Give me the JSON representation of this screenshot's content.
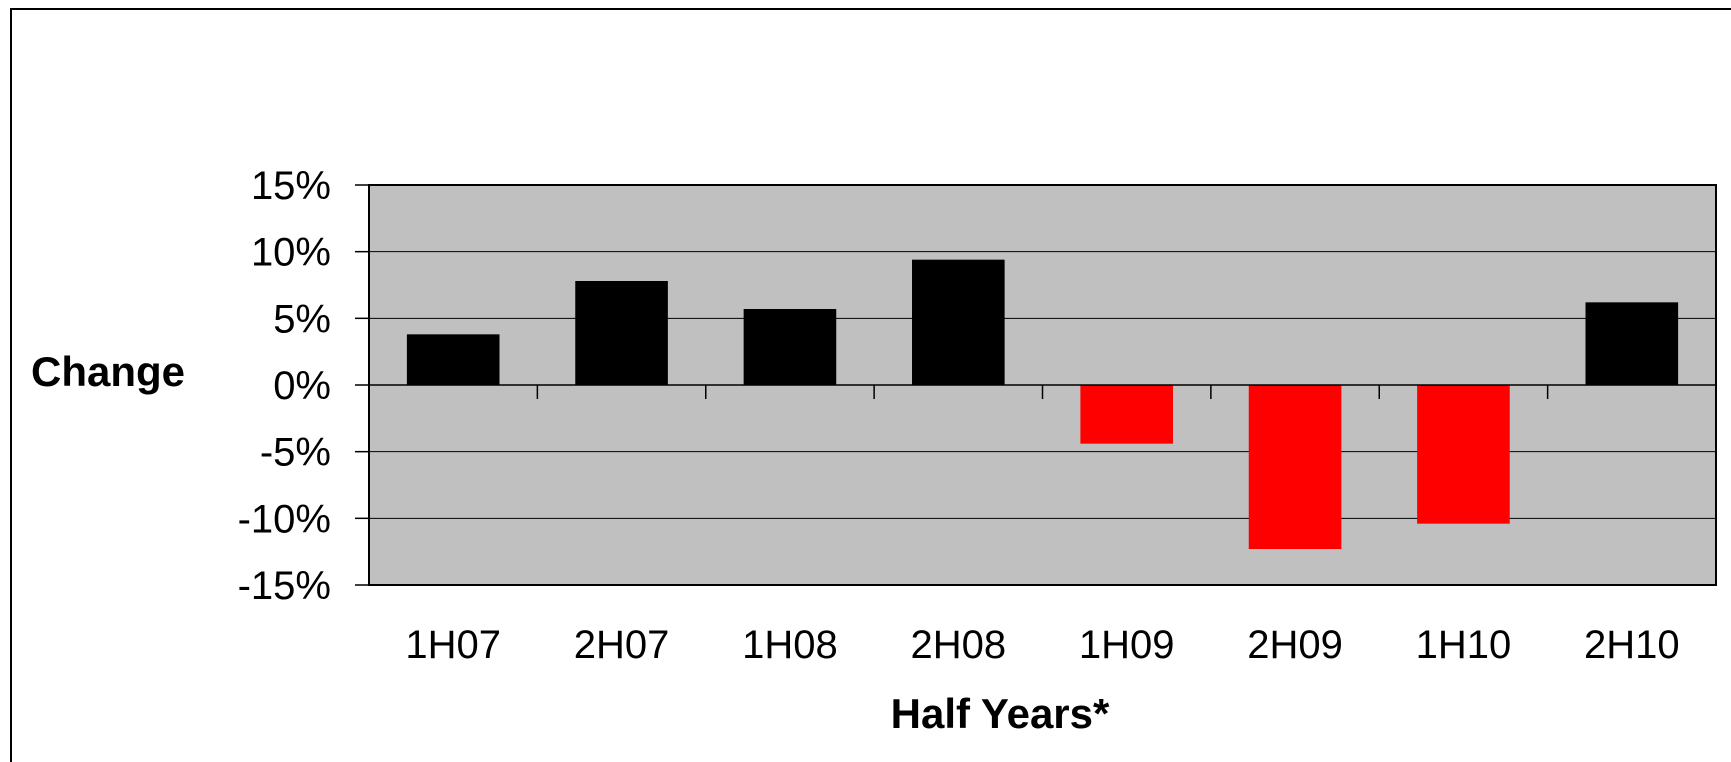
{
  "chart_data": {
    "type": "bar",
    "title": "",
    "xlabel": "Half Years*",
    "ylabel": "Change",
    "categories": [
      "1H07",
      "2H07",
      "1H08",
      "2H08",
      "1H09",
      "2H09",
      "1H10",
      "2H10"
    ],
    "values": [
      3.8,
      7.8,
      5.7,
      9.4,
      -4.4,
      -12.3,
      -10.4,
      6.2
    ],
    "value_unit": "%",
    "ylim": [
      -15,
      15
    ],
    "yticks": [
      15,
      10,
      5,
      0,
      -5,
      -10,
      -15
    ],
    "ytick_labels": [
      "15%",
      "10%",
      "5%",
      "0%",
      "-5%",
      "-10%",
      "-15%"
    ],
    "grid": true,
    "legend": "none",
    "colors": {
      "positive": "#000000",
      "negative": "#ff0000",
      "plot_background": "#c0c0c0",
      "gridline": "#000000"
    }
  }
}
